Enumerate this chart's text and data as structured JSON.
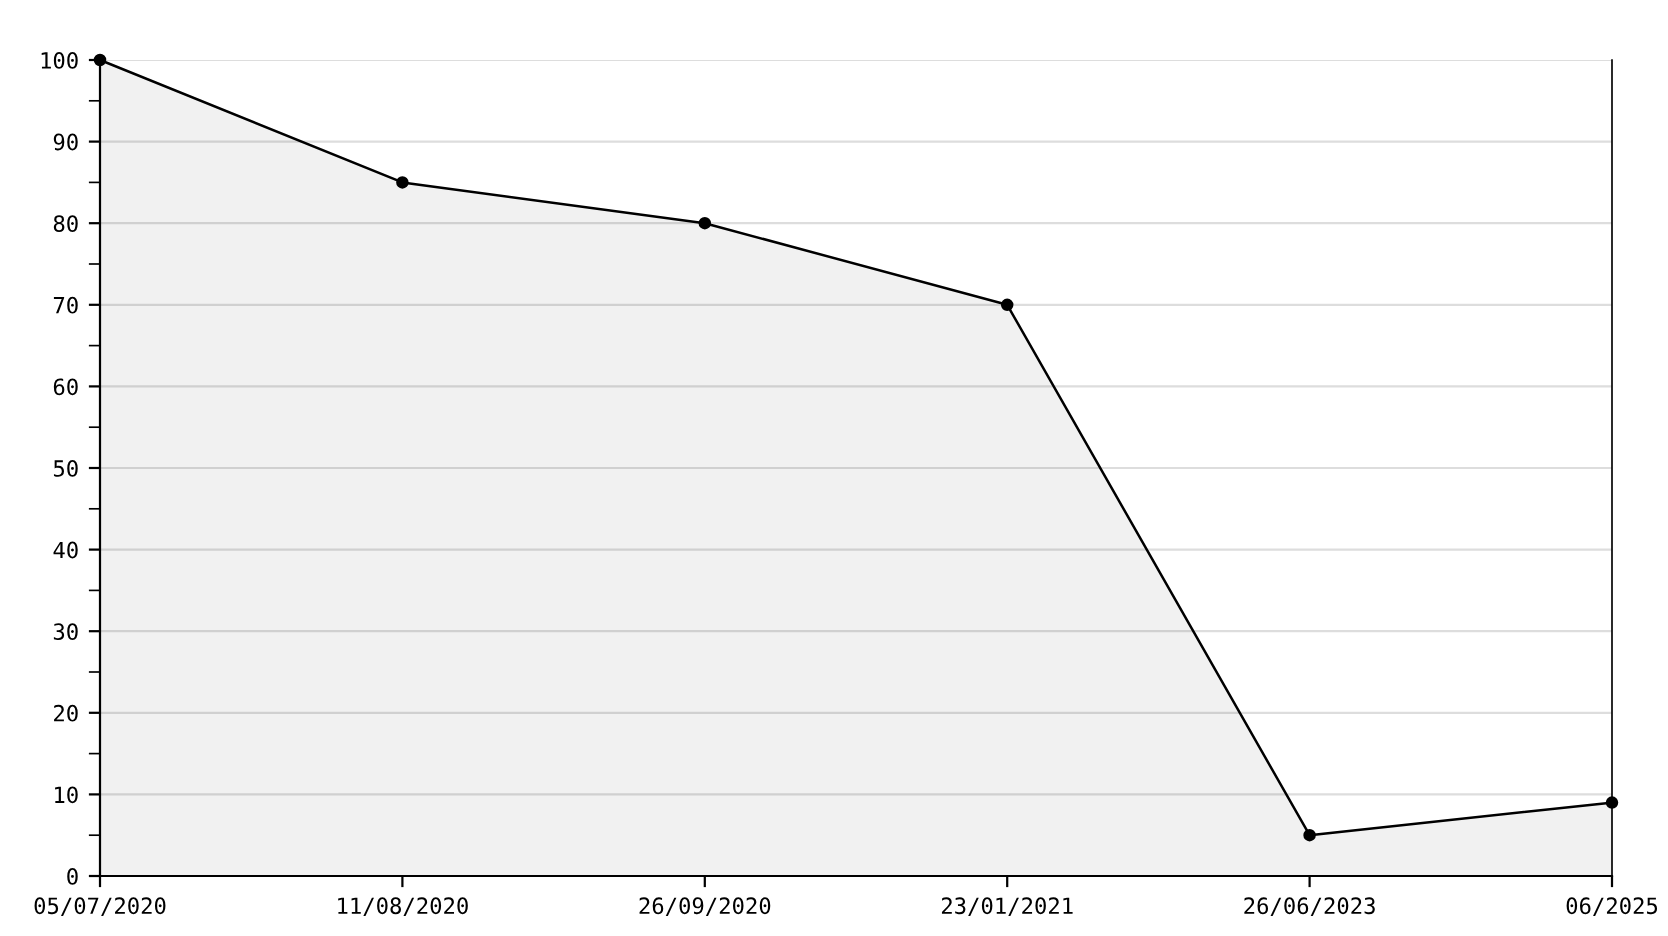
{
  "chart_data": {
    "type": "area",
    "categories": [
      "05/07/2020",
      "11/08/2020",
      "26/09/2020",
      "23/01/2021",
      "26/06/2023",
      "06/2025"
    ],
    "series": [
      {
        "color": "#000000",
        "values": [
          100,
          85,
          80,
          70,
          5,
          9
        ]
      }
    ],
    "marker": "circle",
    "line_style": "solid",
    "grid": "y",
    "ylim": [
      0,
      100
    ],
    "yticks": [
      0,
      {
        "value": 5,
        "label": null
      },
      10,
      {
        "value": 15,
        "label": null
      },
      20,
      {
        "value": 25,
        "label": null
      },
      30,
      {
        "value": 35,
        "label": null
      },
      40,
      {
        "value": 45,
        "label": null
      },
      50,
      {
        "value": 55,
        "label": null
      },
      60,
      {
        "value": 65,
        "label": null
      },
      70,
      {
        "value": 75,
        "label": null
      },
      80,
      {
        "value": 85,
        "label": null
      },
      90,
      {
        "value": 95,
        "label": null
      },
      100
    ]
  }
}
